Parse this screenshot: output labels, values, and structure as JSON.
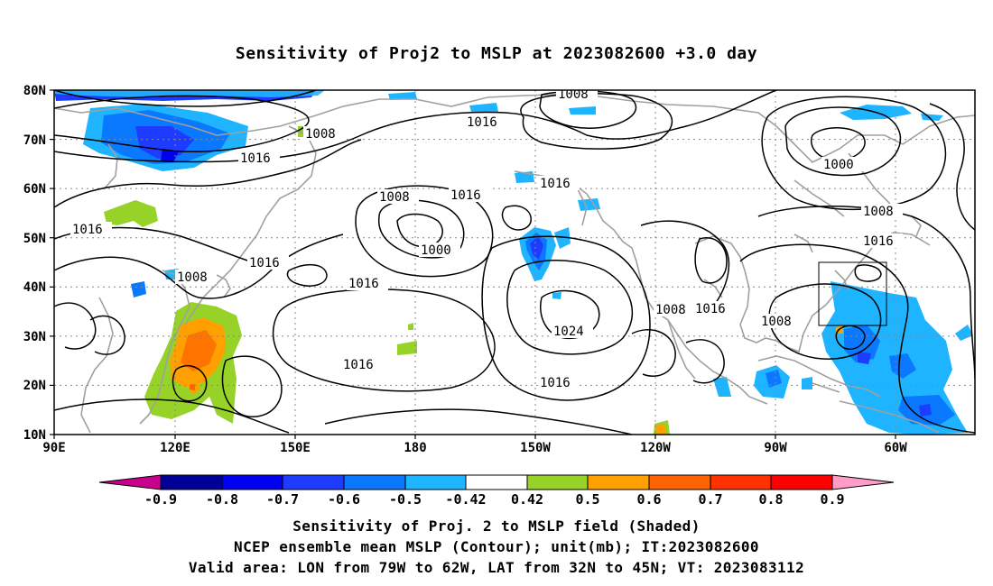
{
  "title": "Sensitivity of Proj2 to MSLP at 2023082600 +3.0 day",
  "map": {
    "lon_labels": [
      "90E",
      "120E",
      "150E",
      "180",
      "150W",
      "120W",
      "90W",
      "60W"
    ],
    "lat_labels": [
      "80N",
      "70N",
      "60N",
      "50N",
      "40N",
      "30N",
      "20N",
      "10N"
    ],
    "contour_labels": [
      "1008",
      "1016",
      "1008",
      "1016",
      "1016",
      "1016",
      "1016",
      "1008",
      "1016",
      "1016",
      "1000",
      "1016",
      "1008",
      "1008",
      "1016",
      "1000",
      "1016",
      "1024",
      "1016",
      "1008",
      "1016",
      "1008"
    ],
    "colors": {
      "coast": "#a0a0a0",
      "contour": "#000000",
      "grid": "#888888"
    }
  },
  "colorbar": {
    "labels": [
      "-0.9",
      "-0.8",
      "-0.7",
      "-0.6",
      "-0.5",
      "-0.42",
      "0.42",
      "0.5",
      "0.6",
      "0.7",
      "0.8",
      "0.9"
    ],
    "colors": [
      "#000096",
      "#0000f0",
      "#1e3cff",
      "#0a78ff",
      "#1eb4ff",
      "#ffffff",
      "#96d228",
      "#ffa000",
      "#ff6400",
      "#ff3200",
      "#ff0000"
    ],
    "under_color": "#c8008c",
    "over_color": "#ff9cc8"
  },
  "captions": [
    "Sensitivity of Proj. 2 to MSLP field (Shaded)",
    "NCEP ensemble mean MSLP (Contour); unit(mb); IT:2023082600",
    "Valid area: LON from 79W to 62W, LAT from 32N to 45N; VT: 2023083112"
  ]
}
